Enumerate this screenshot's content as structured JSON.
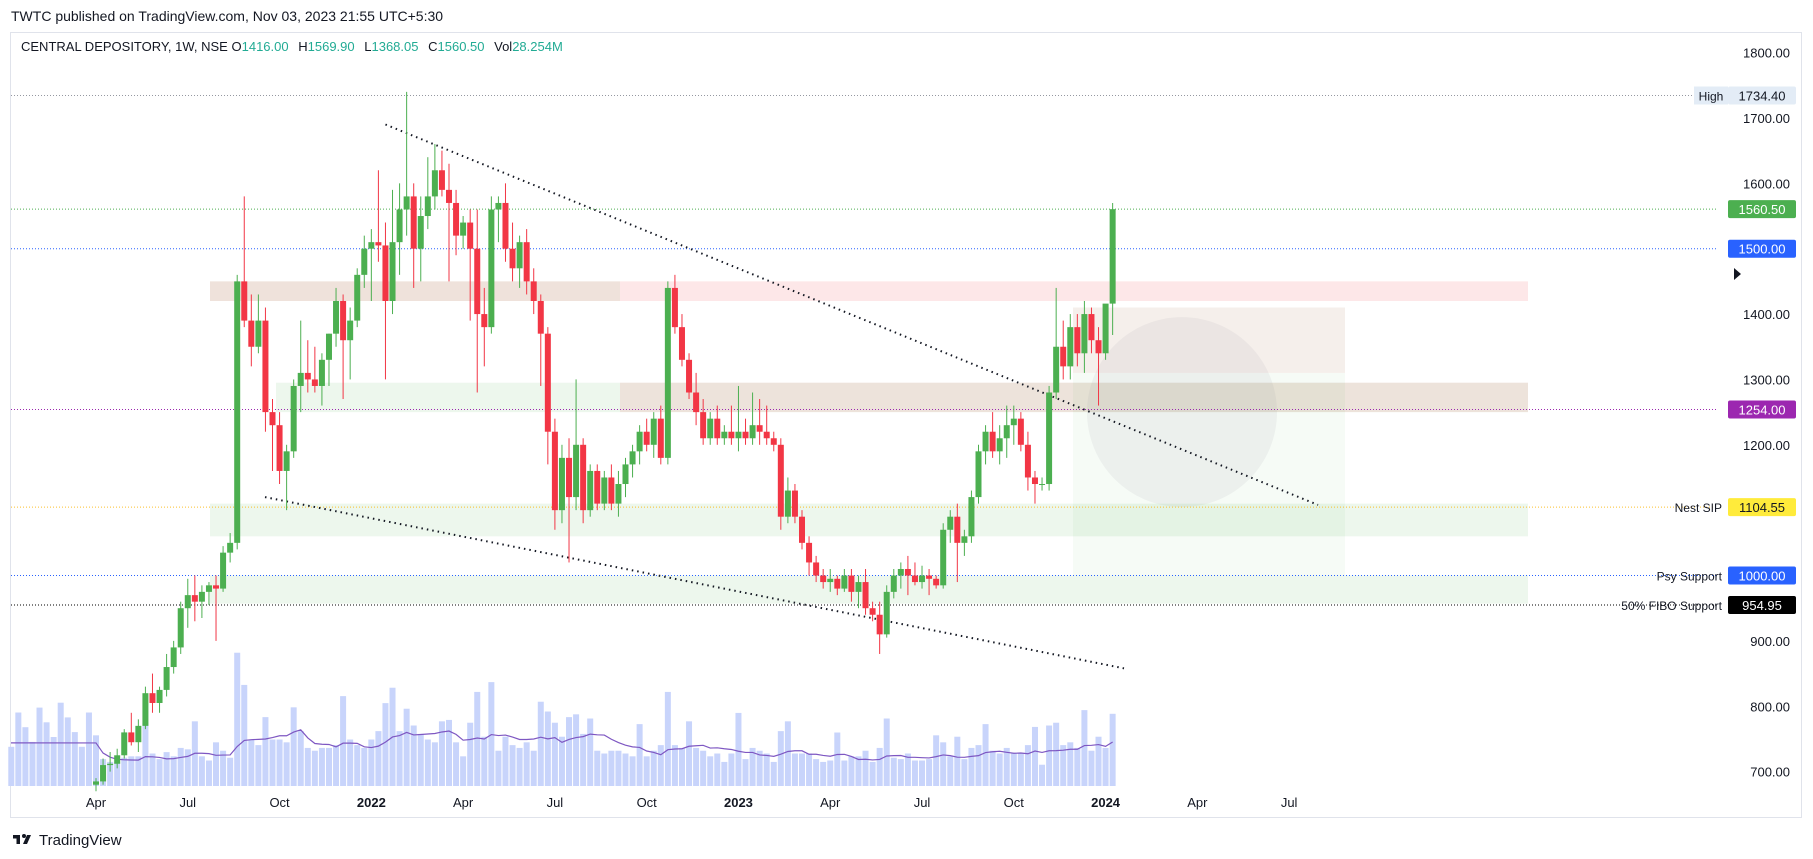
{
  "header": {
    "published": "TWTC published on TradingView.com, Nov 03, 2023 21:55 UTC+5:30"
  },
  "legend": {
    "symbol": "CENTRAL DEPOSITORY, 1W, NSE",
    "o_label": "O",
    "o_value": "1416.00",
    "h_label": "H",
    "h_value": "1569.90",
    "l_label": "L",
    "l_value": "1368.05",
    "c_label": "C",
    "c_value": "1560.50",
    "vol_label": "Vol",
    "vol_value": "28.254M"
  },
  "footer": {
    "brand": "TradingView"
  },
  "colors": {
    "up": "#4caf50",
    "down": "#f23645",
    "volume": "#c8d4fb",
    "volume_ma": "#7e57c2",
    "tag_green": "#4caf50",
    "tag_blue": "#2962ff",
    "tag_purple": "#9c27b0",
    "tag_yellow": "#ffeb3b",
    "tag_black": "#000000"
  },
  "chart_data": {
    "type": "candlestick",
    "title": "",
    "timeframe": "1W",
    "exchange": "NSE",
    "y_axis": {
      "ticks": [
        "1800.00",
        "1700.00",
        "1600.00",
        "1400.00",
        "1300.00",
        "1200.00",
        "900.00",
        "800.00",
        "700.00"
      ],
      "ylim": [
        678,
        1830
      ]
    },
    "x_axis": {
      "ticks": [
        {
          "label": "Apr",
          "bold": false,
          "week": 12
        },
        {
          "label": "Jul",
          "bold": false,
          "week": 25
        },
        {
          "label": "Oct",
          "bold": false,
          "week": 38
        },
        {
          "label": "2022",
          "bold": true,
          "week": 51
        },
        {
          "label": "Apr",
          "bold": false,
          "week": 64
        },
        {
          "label": "Jul",
          "bold": false,
          "week": 77
        },
        {
          "label": "Oct",
          "bold": false,
          "week": 90
        },
        {
          "label": "2023",
          "bold": true,
          "week": 103
        },
        {
          "label": "Apr",
          "bold": false,
          "week": 116
        },
        {
          "label": "Jul",
          "bold": false,
          "week": 129
        },
        {
          "label": "Oct",
          "bold": false,
          "week": 142
        },
        {
          "label": "2024",
          "bold": true,
          "week": 155
        },
        {
          "label": "Apr",
          "bold": false,
          "week": 168
        },
        {
          "label": "Jul",
          "bold": false,
          "week": 181
        }
      ]
    },
    "candles": [
      [
        680,
        690,
        670,
        685
      ],
      [
        685,
        720,
        680,
        710
      ],
      [
        710,
        730,
        700,
        712
      ],
      [
        712,
        735,
        705,
        725
      ],
      [
        725,
        765,
        720,
        760
      ],
      [
        760,
        790,
        740,
        745
      ],
      [
        745,
        780,
        730,
        770
      ],
      [
        770,
        830,
        765,
        820
      ],
      [
        820,
        850,
        790,
        805
      ],
      [
        805,
        830,
        790,
        825
      ],
      [
        825,
        880,
        815,
        860
      ],
      [
        860,
        900,
        850,
        890
      ],
      [
        890,
        960,
        880,
        950
      ],
      [
        950,
        995,
        920,
        970
      ],
      [
        970,
        1000,
        930,
        960
      ],
      [
        960,
        985,
        935,
        975
      ],
      [
        975,
        990,
        955,
        985
      ],
      [
        985,
        1000,
        900,
        980
      ],
      [
        980,
        1045,
        975,
        1035
      ],
      [
        1035,
        1065,
        1020,
        1050
      ],
      [
        1050,
        1460,
        1040,
        1450
      ],
      [
        1450,
        1580,
        1380,
        1390
      ],
      [
        1390,
        1430,
        1320,
        1350
      ],
      [
        1350,
        1430,
        1340,
        1390
      ],
      [
        1390,
        1410,
        1220,
        1250
      ],
      [
        1250,
        1270,
        1160,
        1230
      ],
      [
        1230,
        1250,
        1140,
        1160
      ],
      [
        1160,
        1200,
        1100,
        1190
      ],
      [
        1190,
        1300,
        1180,
        1290
      ],
      [
        1290,
        1390,
        1250,
        1310
      ],
      [
        1310,
        1360,
        1280,
        1300
      ],
      [
        1300,
        1350,
        1280,
        1290
      ],
      [
        1290,
        1340,
        1260,
        1330
      ],
      [
        1330,
        1370,
        1290,
        1370
      ],
      [
        1370,
        1440,
        1350,
        1420
      ],
      [
        1420,
        1430,
        1270,
        1360
      ],
      [
        1360,
        1410,
        1300,
        1390
      ],
      [
        1390,
        1470,
        1380,
        1460
      ],
      [
        1460,
        1520,
        1440,
        1500
      ],
      [
        1500,
        1530,
        1420,
        1510
      ],
      [
        1510,
        1620,
        1480,
        1505
      ],
      [
        1505,
        1540,
        1300,
        1420
      ],
      [
        1420,
        1590,
        1400,
        1510
      ],
      [
        1510,
        1600,
        1460,
        1560
      ],
      [
        1560,
        1740,
        1520,
        1580
      ],
      [
        1580,
        1600,
        1440,
        1500
      ],
      [
        1500,
        1580,
        1450,
        1550
      ],
      [
        1550,
        1640,
        1530,
        1580
      ],
      [
        1580,
        1660,
        1560,
        1620
      ],
      [
        1620,
        1650,
        1580,
        1590
      ],
      [
        1590,
        1630,
        1450,
        1570
      ],
      [
        1570,
        1590,
        1490,
        1520
      ],
      [
        1520,
        1550,
        1500,
        1540
      ],
      [
        1540,
        1560,
        1390,
        1500
      ],
      [
        1500,
        1560,
        1280,
        1400
      ],
      [
        1400,
        1440,
        1320,
        1380
      ],
      [
        1380,
        1580,
        1370,
        1560
      ],
      [
        1560,
        1580,
        1510,
        1570
      ],
      [
        1570,
        1600,
        1480,
        1500
      ],
      [
        1500,
        1540,
        1450,
        1470
      ],
      [
        1470,
        1520,
        1440,
        1510
      ],
      [
        1510,
        1530,
        1430,
        1450
      ],
      [
        1450,
        1470,
        1400,
        1420
      ],
      [
        1420,
        1430,
        1290,
        1370
      ],
      [
        1370,
        1380,
        1170,
        1220
      ],
      [
        1220,
        1240,
        1070,
        1100
      ],
      [
        1100,
        1200,
        1080,
        1180
      ],
      [
        1180,
        1210,
        1020,
        1120
      ],
      [
        1120,
        1300,
        1100,
        1200
      ],
      [
        1200,
        1210,
        1080,
        1100
      ],
      [
        1100,
        1170,
        1090,
        1160
      ],
      [
        1160,
        1170,
        1100,
        1110
      ],
      [
        1110,
        1160,
        1100,
        1150
      ],
      [
        1150,
        1170,
        1100,
        1110
      ],
      [
        1110,
        1160,
        1090,
        1140
      ],
      [
        1140,
        1180,
        1120,
        1170
      ],
      [
        1170,
        1200,
        1150,
        1190
      ],
      [
        1190,
        1230,
        1170,
        1220
      ],
      [
        1220,
        1240,
        1190,
        1200
      ],
      [
        1200,
        1250,
        1180,
        1240
      ],
      [
        1240,
        1260,
        1170,
        1180
      ],
      [
        1180,
        1450,
        1170,
        1440
      ],
      [
        1440,
        1460,
        1370,
        1380
      ],
      [
        1380,
        1400,
        1320,
        1330
      ],
      [
        1330,
        1340,
        1270,
        1280
      ],
      [
        1280,
        1310,
        1230,
        1250
      ],
      [
        1250,
        1270,
        1200,
        1210
      ],
      [
        1210,
        1250,
        1200,
        1240
      ],
      [
        1240,
        1260,
        1200,
        1210
      ],
      [
        1210,
        1230,
        1200,
        1220
      ],
      [
        1220,
        1260,
        1200,
        1210
      ],
      [
        1210,
        1290,
        1190,
        1220
      ],
      [
        1220,
        1240,
        1200,
        1210
      ],
      [
        1210,
        1280,
        1200,
        1230
      ],
      [
        1230,
        1270,
        1200,
        1220
      ],
      [
        1220,
        1260,
        1200,
        1210
      ],
      [
        1210,
        1220,
        1190,
        1200
      ],
      [
        1200,
        1210,
        1070,
        1090
      ],
      [
        1090,
        1150,
        1080,
        1130
      ],
      [
        1130,
        1140,
        1080,
        1090
      ],
      [
        1090,
        1100,
        1040,
        1050
      ],
      [
        1050,
        1060,
        1000,
        1020
      ],
      [
        1020,
        1030,
        990,
        1000
      ],
      [
        1000,
        1010,
        980,
        990
      ],
      [
        990,
        1010,
        975,
        995
      ],
      [
        995,
        1000,
        970,
        980
      ],
      [
        980,
        1010,
        975,
        1000
      ],
      [
        1000,
        1010,
        960,
        975
      ],
      [
        975,
        1000,
        950,
        990
      ],
      [
        990,
        1010,
        940,
        950
      ],
      [
        950,
        960,
        930,
        940
      ],
      [
        940,
        960,
        880,
        910
      ],
      [
        910,
        985,
        905,
        975
      ],
      [
        975,
        1010,
        965,
        1000
      ],
      [
        1000,
        1020,
        980,
        1010
      ],
      [
        1010,
        1030,
        970,
        1000
      ],
      [
        1000,
        1020,
        985,
        990
      ],
      [
        990,
        1015,
        980,
        1000
      ],
      [
        1000,
        1010,
        970,
        995
      ],
      [
        995,
        1000,
        980,
        985
      ],
      [
        985,
        1080,
        980,
        1070
      ],
      [
        1070,
        1100,
        1050,
        1090
      ],
      [
        1090,
        1110,
        990,
        1050
      ],
      [
        1050,
        1070,
        1030,
        1060
      ],
      [
        1060,
        1130,
        1050,
        1120
      ],
      [
        1120,
        1200,
        1110,
        1190
      ],
      [
        1190,
        1230,
        1170,
        1220
      ],
      [
        1220,
        1250,
        1180,
        1190
      ],
      [
        1190,
        1230,
        1170,
        1210
      ],
      [
        1210,
        1260,
        1180,
        1230
      ],
      [
        1230,
        1260,
        1200,
        1240
      ],
      [
        1240,
        1250,
        1190,
        1200
      ],
      [
        1200,
        1220,
        1130,
        1150
      ],
      [
        1150,
        1160,
        1110,
        1140
      ],
      [
        1140,
        1150,
        1130,
        1140
      ],
      [
        1140,
        1290,
        1130,
        1280
      ],
      [
        1280,
        1440,
        1270,
        1350
      ],
      [
        1350,
        1390,
        1300,
        1320
      ],
      [
        1320,
        1400,
        1300,
        1380
      ],
      [
        1380,
        1400,
        1320,
        1340
      ],
      [
        1340,
        1420,
        1310,
        1400
      ],
      [
        1400,
        1410,
        1340,
        1360
      ],
      [
        1360,
        1380,
        1260,
        1340
      ],
      [
        1340,
        1410,
        1330,
        1416
      ],
      [
        1416,
        1569.9,
        1368.05,
        1560.5
      ]
    ],
    "volume": [
      {
        "scale_note": "relative units"
      }
    ],
    "horizontal_lines": [
      {
        "label": "High",
        "value": "1734.40",
        "price": 1734.4,
        "color": "#9598a1",
        "tag": "#e3ecf6"
      },
      {
        "label": "",
        "value": "1560.50",
        "price": 1560.5,
        "color": "#4caf50",
        "tag": "#4caf50"
      },
      {
        "label": "",
        "value": "1500.00",
        "price": 1500,
        "color": "#2962ff",
        "tag": "#2962ff"
      },
      {
        "label": "",
        "value": "1254.00",
        "price": 1254,
        "color": "#9c27b0",
        "tag": "#9c27b0"
      },
      {
        "label": "Nest SIP",
        "value": "1104.55",
        "price": 1104.55,
        "color": "#fbc02d",
        "tag": "#ffeb3b"
      },
      {
        "label": "Psy Support",
        "value": "1000.00",
        "price": 1000,
        "color": "#2962ff",
        "tag": "#2962ff"
      },
      {
        "label": "50% FIBO Support",
        "value": "954.95",
        "price": 954.95,
        "color": "#000000",
        "tag": "#000000"
      }
    ]
  }
}
